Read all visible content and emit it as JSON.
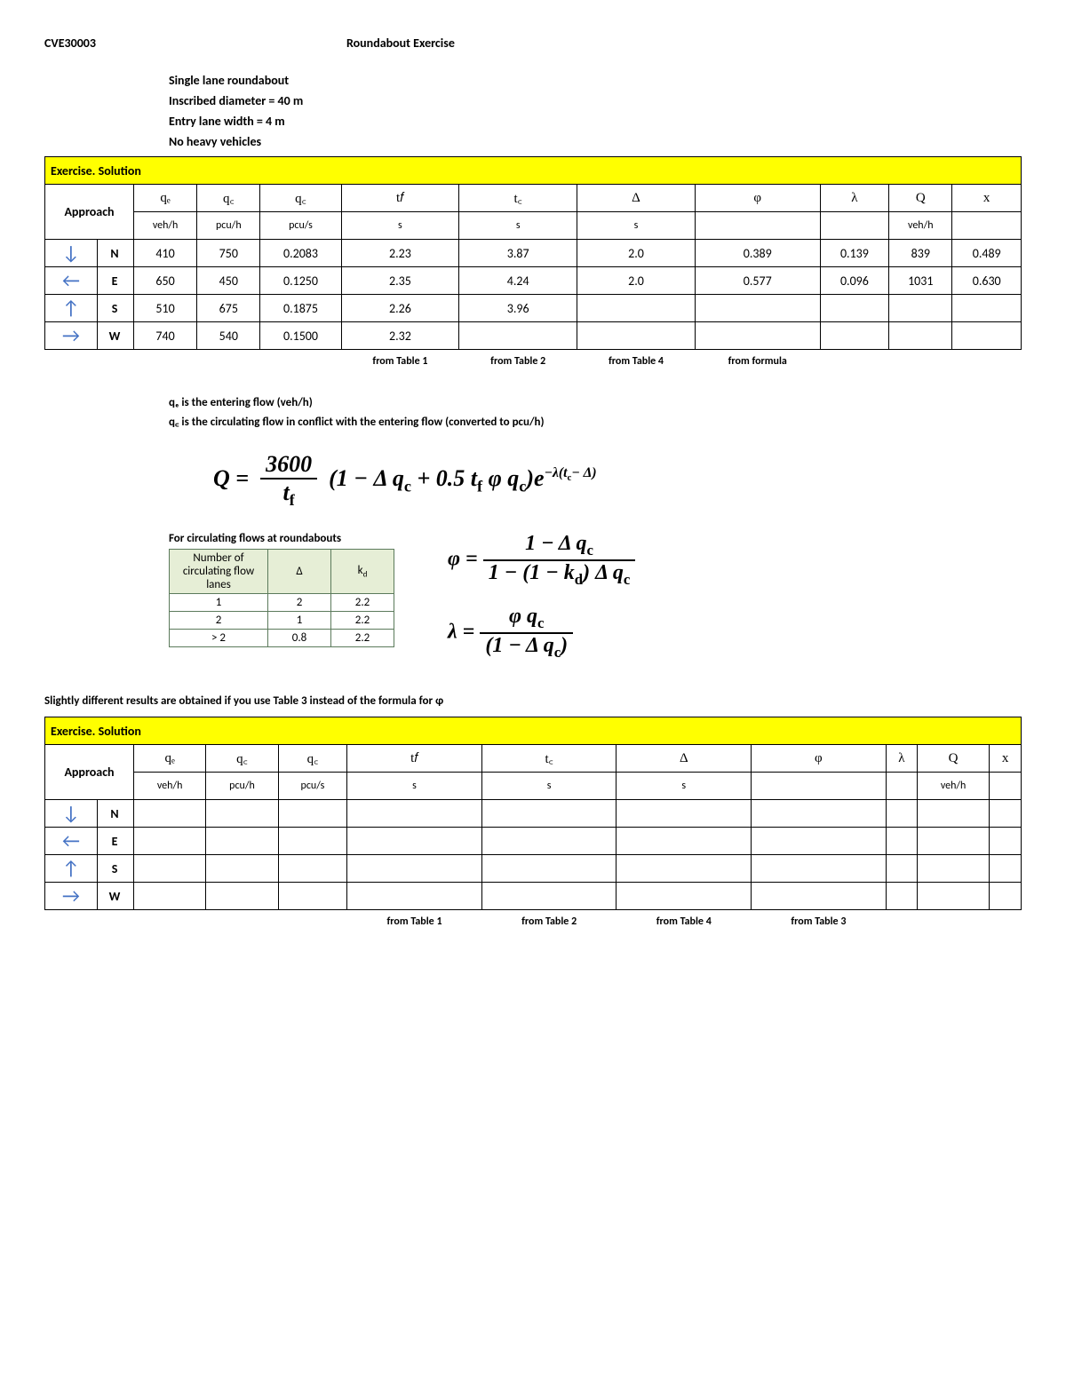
{
  "header": {
    "course_code": "CVE30003",
    "title": "Roundabout Exercise"
  },
  "specs": [
    "Single lane roundabout",
    "Inscribed diameter = 40 m",
    "Entry lane width = 4 m",
    "No heavy vehicles"
  ],
  "solution_header": "Exercise. Solution",
  "columns": {
    "approach": "Approach",
    "qe": {
      "sym": "qₑ",
      "unit": "veh/h"
    },
    "qc_h": {
      "sym": "q꜀",
      "unit": "pcu/h"
    },
    "qc_s": {
      "sym": "q꜀",
      "unit": "pcu/s"
    },
    "tf": {
      "sym": "t𝑓",
      "unit": "s"
    },
    "tc": {
      "sym": "t꜀",
      "unit": "s"
    },
    "delta": {
      "sym": "Δ",
      "unit": "s"
    },
    "phi": {
      "sym": "φ",
      "unit": ""
    },
    "lambda": {
      "sym": "λ",
      "unit": ""
    },
    "Q": {
      "sym": "Q",
      "unit": "veh/h"
    },
    "x": {
      "sym": "x",
      "unit": ""
    }
  },
  "arrows": {
    "N": "↓",
    "E": "←",
    "S": "↑",
    "W": "→"
  },
  "table1": {
    "rows": [
      {
        "dir": "N",
        "qe": "410",
        "qch": "750",
        "qcs": "0.2083",
        "tf": "2.23",
        "tc": "3.87",
        "d": "2.0",
        "phi": "0.389",
        "lam": "0.139",
        "Q": "839",
        "x": "0.489"
      },
      {
        "dir": "E",
        "qe": "650",
        "qch": "450",
        "qcs": "0.1250",
        "tf": "2.35",
        "tc": "4.24",
        "d": "2.0",
        "phi": "0.577",
        "lam": "0.096",
        "Q": "1031",
        "x": "0.630"
      },
      {
        "dir": "S",
        "qe": "510",
        "qch": "675",
        "qcs": "0.1875",
        "tf": "2.26",
        "tc": "3.96",
        "d": "",
        "phi": "",
        "lam": "",
        "Q": "",
        "x": ""
      },
      {
        "dir": "W",
        "qe": "740",
        "qch": "540",
        "qcs": "0.1500",
        "tf": "2.32",
        "tc": "",
        "d": "",
        "phi": "",
        "lam": "",
        "Q": "",
        "x": ""
      }
    ],
    "sources": {
      "tf": "from Table 1",
      "tc": "from Table 2",
      "d": "from Table 4",
      "phi": "from formula"
    }
  },
  "notes": {
    "l1": "qₑ is the entering flow (veh/h)",
    "l2": "q꜀ is the circulating flow in conflict with the entering flow (converted to pcu/h)"
  },
  "formula_main_text": "Q = (3600/tf)(1 - Δ qc + 0.5 tf φ qc) e^{-λ(tc-Δ)}",
  "circulating": {
    "title": "For circulating flows at roundabouts",
    "headers": [
      "Number of circulating flow lanes",
      "Δ",
      "k_d"
    ],
    "rows": [
      [
        "1",
        "2",
        "2.2"
      ],
      [
        "2",
        "1",
        "2.2"
      ],
      [
        "> 2",
        "0.8",
        "2.2"
      ]
    ]
  },
  "side_formulas": {
    "phi": "φ = (1 - Δ qc) / (1 - (1 - kd) Δ qc)",
    "lambda": "λ = (φ qc) / (1 - Δ qc)"
  },
  "note_line": "Slightly different results are obtained if you use Table 3 instead of the formula for φ",
  "table2": {
    "rows": [
      {
        "dir": "N"
      },
      {
        "dir": "E"
      },
      {
        "dir": "S"
      },
      {
        "dir": "W"
      }
    ],
    "sources": {
      "tf": "from Table 1",
      "tc": "from Table 2",
      "d": "from Table 4",
      "phi": "from Table 3"
    }
  },
  "colors": {
    "highlight": "#ffff00",
    "arrow": "#4472c4",
    "circ_bg": "#e6eed6",
    "circ_border": "#5b7a5b"
  }
}
